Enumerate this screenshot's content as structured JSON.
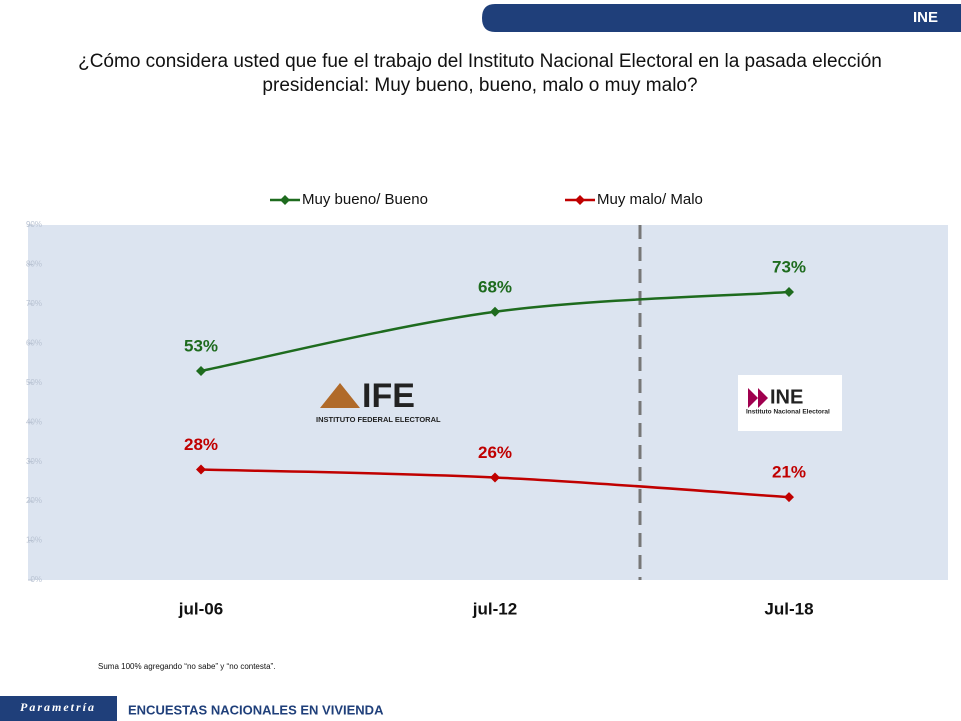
{
  "header": {
    "tag": "INE"
  },
  "chart_data": {
    "type": "line",
    "title": "¿Cómo considera usted que fue el trabajo del Instituto Nacional Electoral en la pasada elección presidencial: Muy bueno, bueno, malo o muy malo?",
    "categories": [
      "jul-06",
      "jul-12",
      "Jul-18"
    ],
    "series": [
      {
        "name": "Muy bueno/ Bueno",
        "color": "#1e6b1e",
        "values": [
          53,
          68,
          73
        ],
        "value_labels": [
          "53%",
          "68%",
          "73%"
        ]
      },
      {
        "name": "Muy malo/ Malo",
        "color": "#c00000",
        "values": [
          28,
          26,
          21
        ],
        "value_labels": [
          "28%",
          "26%",
          "21%"
        ]
      }
    ],
    "ylim": [
      0,
      90
    ],
    "yticks": [
      {
        "value": 0,
        "label": "0%"
      },
      {
        "value": 10,
        "label": "10%"
      },
      {
        "value": 20,
        "label": "20%"
      },
      {
        "value": 30,
        "label": "30%"
      },
      {
        "value": 40,
        "label": "40%"
      },
      {
        "value": 50,
        "label": "50%"
      },
      {
        "value": 60,
        "label": "60%"
      },
      {
        "value": 70,
        "label": "70%"
      },
      {
        "value": 80,
        "label": "80%"
      },
      {
        "value": 90,
        "label": "90%"
      }
    ],
    "legend": "top"
  },
  "logos": {
    "ife": {
      "name": "IFE",
      "subtitle": "INSTITUTO FEDERAL ELECTORAL"
    },
    "ine": {
      "name": "INE",
      "subtitle": "Instituto Nacional Electoral"
    }
  },
  "footnote": "Suma 100%  agregando “no sabe” y “no contesta”.",
  "footer": {
    "brand": "Parametría",
    "text": "ENCUESTAS NACIONALES  EN VIVIENDA"
  }
}
